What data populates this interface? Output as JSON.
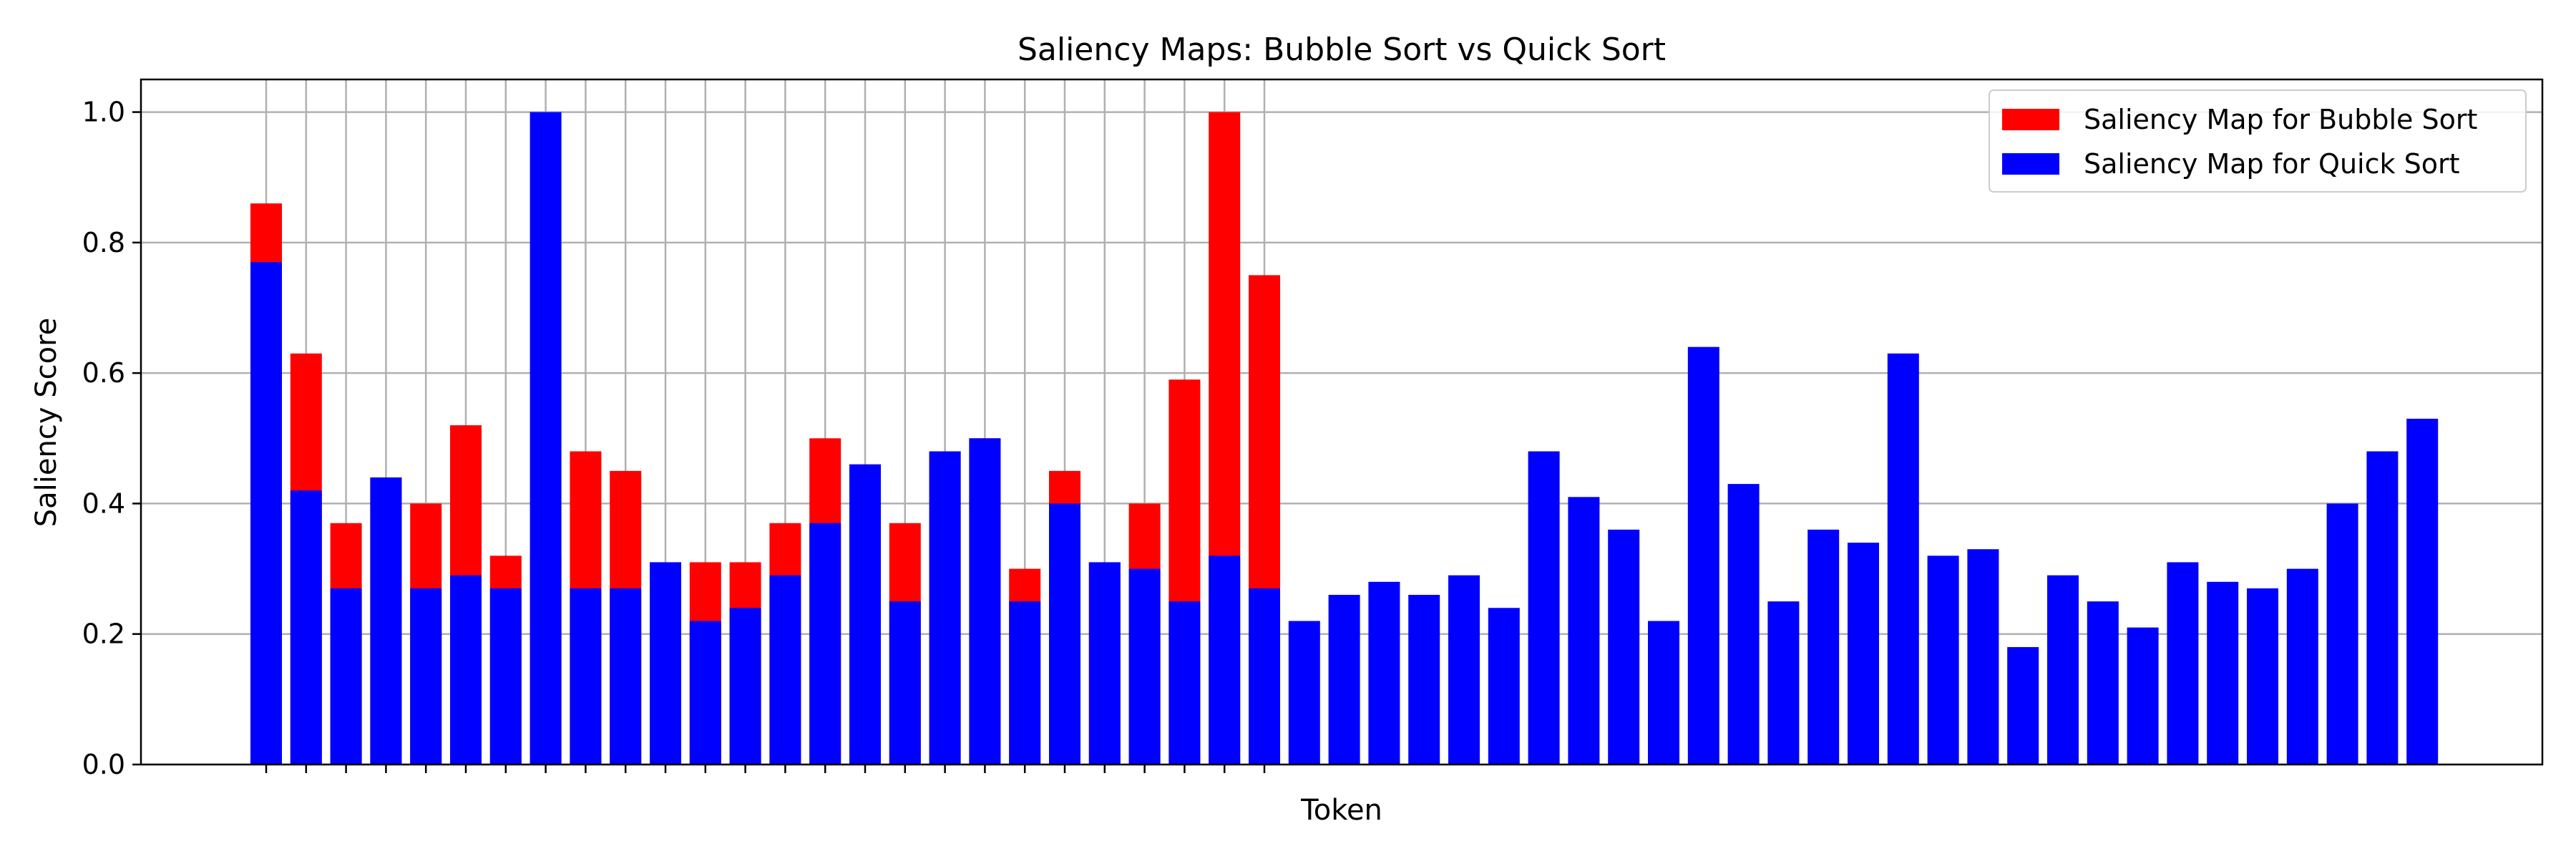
{
  "chart_data": {
    "type": "bar",
    "title": "Saliency Maps: Bubble Sort vs Quick Sort",
    "xlabel": "Token",
    "ylabel": "Saliency Score",
    "ylim": [
      0,
      1.05
    ],
    "yticks": [
      "0.0",
      "0.2",
      "0.4",
      "0.6",
      "0.8",
      "1.0"
    ],
    "grid": true,
    "legend_position": "top-right",
    "series": [
      {
        "name": "Saliency Map for Bubble Sort",
        "color": "#ff0000",
        "values": [
          0.86,
          0.63,
          0.37,
          0.44,
          0.4,
          0.52,
          0.32,
          0.32,
          0.48,
          0.45,
          0.31,
          0.31,
          0.31,
          0.37,
          0.5,
          0.46,
          0.37,
          0.48,
          0.5,
          0.3,
          0.45,
          0.31,
          0.4,
          0.59,
          1.0,
          0.75
        ]
      },
      {
        "name": "Saliency Map for Quick Sort",
        "color": "#0000ff",
        "values": [
          0.77,
          0.42,
          0.27,
          0.44,
          0.27,
          0.29,
          0.27,
          1.0,
          0.27,
          0.27,
          0.31,
          0.22,
          0.24,
          0.29,
          0.37,
          0.46,
          0.25,
          0.48,
          0.5,
          0.25,
          0.4,
          0.31,
          0.3,
          0.25,
          0.32,
          0.27,
          0.22,
          0.26,
          0.28,
          0.26,
          0.29,
          0.24,
          0.48,
          0.41,
          0.36,
          0.22,
          0.64,
          0.43,
          0.25,
          0.36,
          0.34,
          0.63,
          0.32,
          0.33,
          0.18,
          0.29,
          0.25,
          0.21,
          0.31,
          0.28,
          0.27,
          0.3,
          0.4,
          0.48,
          0.53
        ]
      }
    ]
  }
}
